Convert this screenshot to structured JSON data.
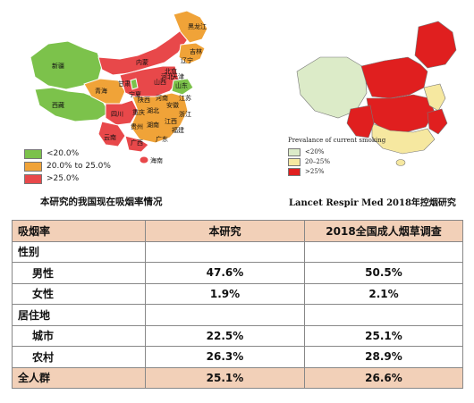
{
  "left_map": {
    "labels": [
      "黑龙江",
      "吉林",
      "辽宁",
      "内蒙",
      "新疆",
      "西藏",
      "青海",
      "甘肃",
      "宁夏",
      "四川",
      "云南",
      "贵州",
      "广西",
      "广东",
      "湖南",
      "湖北",
      "河南",
      "山西",
      "陕西",
      "江西",
      "福建",
      "浙江",
      "安徽",
      "山东",
      "北京",
      "天津",
      "河北",
      "江苏",
      "重庆",
      "海南"
    ],
    "legend": [
      {
        "label": "<20.0%",
        "color": "#7cc24b"
      },
      {
        "label": "20.0% to 25.0%",
        "color": "#f0a338"
      },
      {
        "label": ">25.0%",
        "color": "#e8484a"
      }
    ],
    "caption": "本研究的我国现在吸烟率情况"
  },
  "right_map": {
    "legend_title": "Prevalance of current smoking",
    "legend": [
      {
        "label": "<20%",
        "color": "#dcebc8"
      },
      {
        "label": "20–25%",
        "color": "#f6e8a0"
      },
      {
        "label": ">25%",
        "color": "#e01f1f"
      }
    ],
    "caption": "Lancet Respir Med 2018年控烟研究"
  },
  "table": {
    "headers": [
      "吸烟率",
      "本研究",
      "2018全国成人烟草调查"
    ],
    "rows": [
      {
        "label": "性别",
        "a": "",
        "b": ""
      },
      {
        "label": "男性",
        "a": "47.6%",
        "b": "50.5%"
      },
      {
        "label": "女性",
        "a": "1.9%",
        "b": "2.1%"
      },
      {
        "label": "居住地",
        "a": "",
        "b": ""
      },
      {
        "label": "城市",
        "a": "22.5%",
        "b": "25.1%"
      },
      {
        "label": "农村",
        "a": "26.3%",
        "b": "28.9%"
      },
      {
        "label": "全人群",
        "a": "25.1%",
        "b": "26.6%"
      }
    ]
  }
}
